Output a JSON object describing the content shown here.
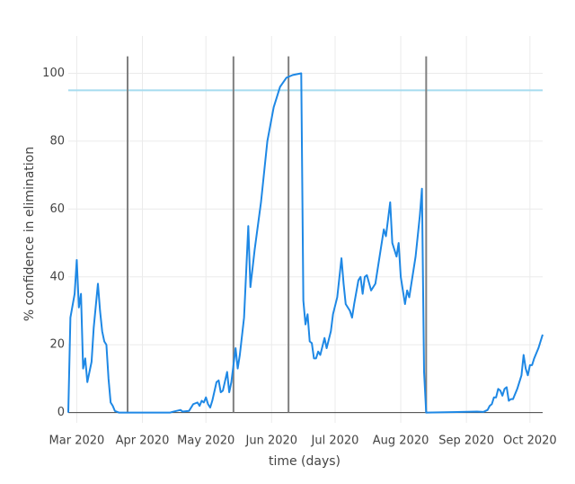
{
  "chart_data": {
    "type": "line",
    "xlabel": "time (days)",
    "ylabel": "% confidence in elimination",
    "x": [
      "2020-02-26",
      "2020-02-27",
      "2020-02-29",
      "2020-03-01",
      "2020-03-02",
      "2020-03-03",
      "2020-03-04",
      "2020-03-05",
      "2020-03-06",
      "2020-03-08",
      "2020-03-09",
      "2020-03-11",
      "2020-03-12",
      "2020-03-13",
      "2020-03-14",
      "2020-03-15",
      "2020-03-16",
      "2020-03-17",
      "2020-03-18",
      "2020-03-19",
      "2020-03-21",
      "2020-04-14",
      "2020-04-15",
      "2020-04-17",
      "2020-04-19",
      "2020-04-20",
      "2020-04-23",
      "2020-04-25",
      "2020-04-27",
      "2020-04-28",
      "2020-04-29",
      "2020-04-30",
      "2020-05-01",
      "2020-05-02",
      "2020-05-03",
      "2020-05-04",
      "2020-05-06",
      "2020-05-07",
      "2020-05-08",
      "2020-05-09",
      "2020-05-11",
      "2020-05-12",
      "2020-05-13",
      "2020-05-15",
      "2020-05-16",
      "2020-05-17",
      "2020-05-19",
      "2020-05-21",
      "2020-05-22",
      "2020-05-24",
      "2020-05-27",
      "2020-05-30",
      "2020-06-02",
      "2020-06-05",
      "2020-06-08",
      "2020-06-11",
      "2020-06-15",
      "2020-06-16",
      "2020-06-17",
      "2020-06-18",
      "2020-06-19",
      "2020-06-20",
      "2020-06-21",
      "2020-06-22",
      "2020-06-23",
      "2020-06-24",
      "2020-06-26",
      "2020-06-27",
      "2020-06-29",
      "2020-06-30",
      "2020-07-02",
      "2020-07-04",
      "2020-07-05",
      "2020-07-06",
      "2020-07-08",
      "2020-07-09",
      "2020-07-10",
      "2020-07-12",
      "2020-07-13",
      "2020-07-14",
      "2020-07-15",
      "2020-07-16",
      "2020-07-18",
      "2020-07-20",
      "2020-07-22",
      "2020-07-24",
      "2020-07-25",
      "2020-07-27",
      "2020-07-28",
      "2020-07-30",
      "2020-07-31",
      "2020-08-01",
      "2020-08-03",
      "2020-08-04",
      "2020-08-05",
      "2020-08-08",
      "2020-08-10",
      "2020-08-11",
      "2020-08-12",
      "2020-08-13",
      "2020-09-06",
      "2020-09-09",
      "2020-09-11",
      "2020-09-12",
      "2020-09-13",
      "2020-09-14",
      "2020-09-15",
      "2020-09-16",
      "2020-09-17",
      "2020-09-18",
      "2020-09-19",
      "2020-09-20",
      "2020-09-21",
      "2020-09-22",
      "2020-09-23",
      "2020-09-25",
      "2020-09-27",
      "2020-09-28",
      "2020-09-29",
      "2020-09-30",
      "2020-10-01",
      "2020-10-02",
      "2020-10-03",
      "2020-10-05",
      "2020-10-07"
    ],
    "series": [
      {
        "color": "#1e88e5",
        "values": [
          0,
          28,
          35,
          45,
          31,
          35,
          13,
          16,
          9,
          15,
          25,
          38,
          30,
          24,
          21,
          20,
          10,
          3,
          2,
          0.5,
          0,
          0,
          0.2,
          0.5,
          0.8,
          0.3,
          0.5,
          2.5,
          3,
          2,
          3.5,
          3,
          4.5,
          2.5,
          1.5,
          3.5,
          9,
          9.5,
          6,
          6.5,
          12,
          6,
          9,
          19,
          13,
          17,
          28,
          55,
          37,
          48,
          62,
          80,
          90,
          96,
          98.7,
          99.5,
          100,
          33,
          26,
          29,
          21,
          20.5,
          16,
          16,
          18,
          17,
          22,
          19,
          24,
          29,
          34,
          45.5,
          38,
          32,
          30,
          28,
          32,
          39,
          40,
          35,
          40,
          40.5,
          36,
          38,
          46,
          54,
          52,
          62,
          50,
          46,
          50,
          40,
          32,
          36,
          34,
          46,
          58,
          66,
          12,
          0,
          0.3,
          0.2,
          0.8,
          2,
          2.5,
          4.5,
          4.5,
          7,
          6.5,
          5,
          7,
          7.5,
          3.5,
          4,
          4,
          7,
          11,
          17,
          13,
          11,
          14,
          14,
          16,
          19,
          23
        ]
      }
    ],
    "vlines": [
      "2020-03-25",
      "2020-05-14",
      "2020-06-09",
      "2020-08-13"
    ],
    "vline_top": 105,
    "vline_color": "#808080",
    "hline": 95,
    "hline_color": "#a6dcef",
    "xlim": [
      "2020-02-26",
      "2020-10-07"
    ],
    "xticks": [
      {
        "value": "2020-03-01",
        "label": "Mar 2020"
      },
      {
        "value": "2020-04-01",
        "label": "Apr 2020"
      },
      {
        "value": "2020-05-01",
        "label": "May 2020"
      },
      {
        "value": "2020-06-01",
        "label": "Jun 2020"
      },
      {
        "value": "2020-07-01",
        "label": "Jul 2020"
      },
      {
        "value": "2020-08-01",
        "label": "Aug 2020"
      },
      {
        "value": "2020-09-01",
        "label": "Sep 2020"
      },
      {
        "value": "2020-10-01",
        "label": "Oct 2020"
      }
    ],
    "ylim": [
      -3,
      111
    ],
    "yticks": [
      0,
      20,
      40,
      60,
      80,
      100
    ],
    "grid": true
  }
}
